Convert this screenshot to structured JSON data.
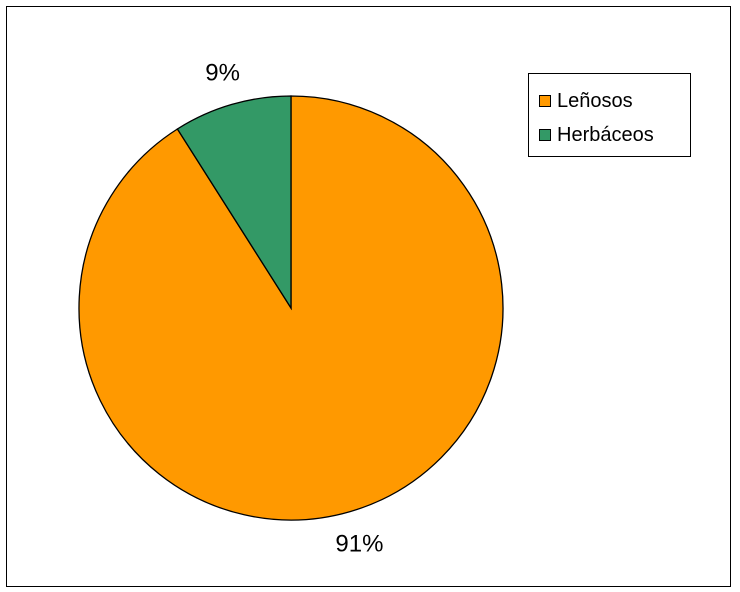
{
  "chart_data": {
    "type": "pie",
    "categories": [
      "Leñosos",
      "Herbáceos"
    ],
    "values": [
      91,
      9
    ],
    "labels": [
      "91%",
      "9%"
    ],
    "colors": [
      "#ff9900",
      "#339966"
    ],
    "start_angle_deg": 0,
    "direction": "clockwise",
    "legend_position": "top-right"
  },
  "legend": {
    "items": [
      {
        "label": "Leñosos",
        "color": "#ff9900"
      },
      {
        "label": "Herbáceos",
        "color": "#339966"
      }
    ]
  }
}
